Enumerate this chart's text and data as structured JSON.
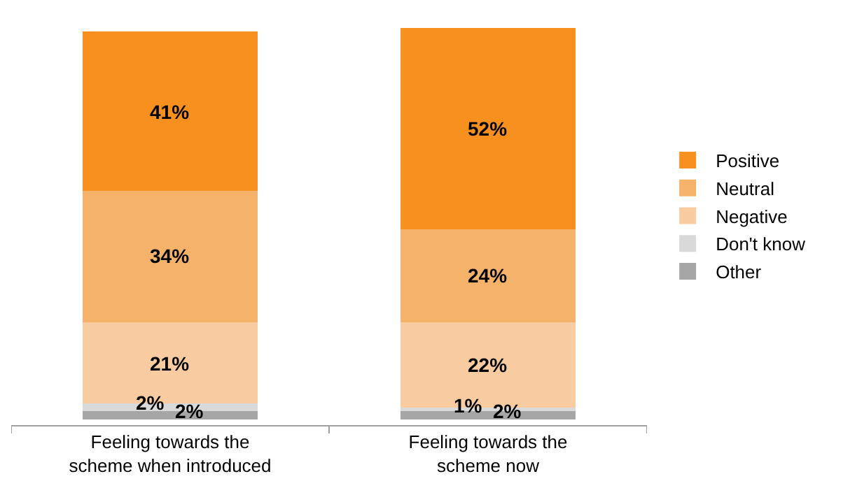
{
  "chart_data": {
    "type": "bar",
    "stacked": true,
    "legend": "right",
    "categories": [
      "Feeling towards the\nscheme when introduced",
      "Feeling towards the\nscheme now"
    ],
    "series": [
      {
        "name": "Other",
        "color": "#a6a6a6",
        "values": [
          2,
          2
        ],
        "value_labels": [
          "2%",
          "2%"
        ]
      },
      {
        "name": "Don't know",
        "color": "#d9d9d9",
        "values": [
          2,
          1
        ],
        "value_labels": [
          "2%",
          "1%"
        ]
      },
      {
        "name": "Negative",
        "color": "#f8cba0",
        "values": [
          21,
          22
        ],
        "value_labels": [
          "21%",
          "22%"
        ]
      },
      {
        "name": "Neutral",
        "color": "#f4b26b",
        "values": [
          34,
          24
        ],
        "value_labels": [
          "34%",
          "24%"
        ]
      },
      {
        "name": "Positive",
        "color": "#f7901e",
        "values": [
          41,
          52
        ],
        "value_labels": [
          "41%",
          "52%"
        ]
      }
    ]
  }
}
